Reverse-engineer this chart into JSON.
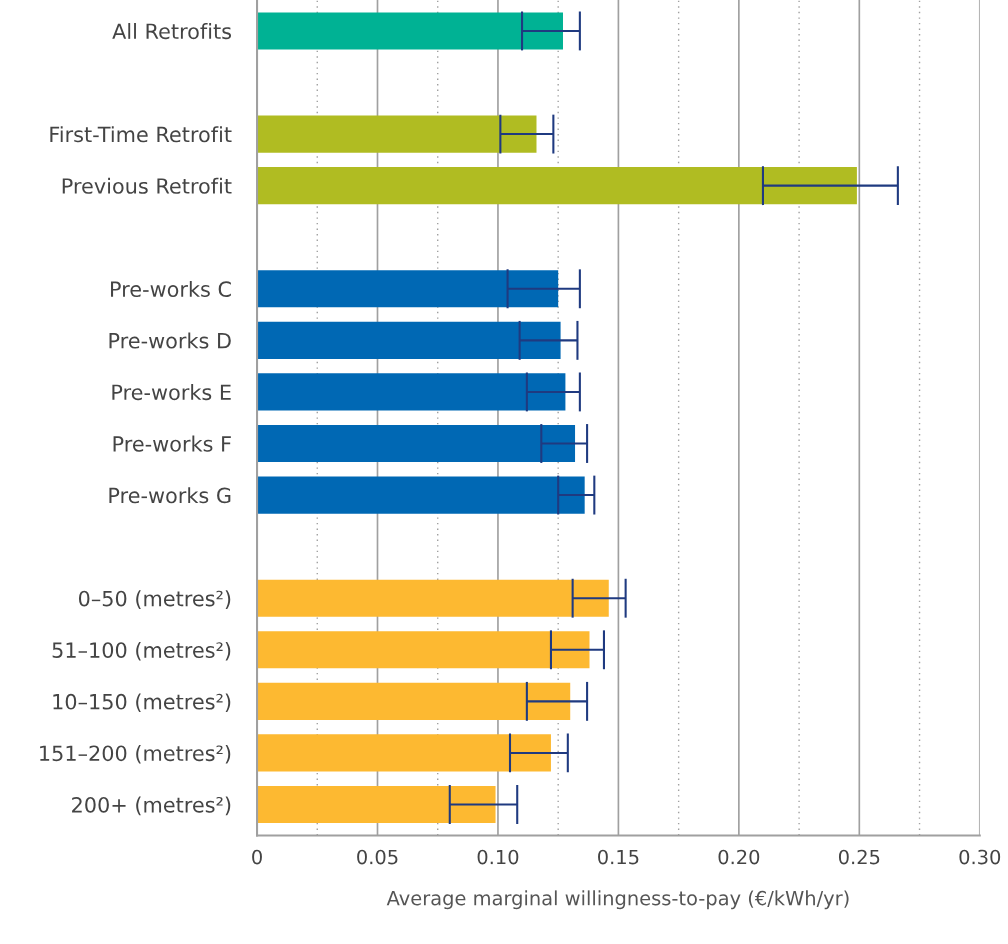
{
  "chart_data": {
    "type": "bar",
    "orientation": "horizontal",
    "xlabel": "Average marginal willingness-to-pay (€/kWh/yr)",
    "categories": [
      "All Retrofits",
      null,
      "First-Time Retrofit",
      "Previous Retrofit",
      null,
      "Pre-works C",
      "Pre-works D",
      "Pre-works E",
      "Pre-works F",
      "Pre-works G",
      null,
      "0–50 (metres²)",
      "51–100 (metres²)",
      "10–150 (metres²)",
      "151–200 (metres²)",
      "200+ (metres²)"
    ],
    "values": [
      0.127,
      null,
      0.116,
      0.249,
      null,
      0.125,
      0.126,
      0.128,
      0.132,
      0.136,
      null,
      0.146,
      0.138,
      0.13,
      0.122,
      0.099
    ],
    "colors": [
      "#00b294",
      null,
      "#b0bc22",
      "#b0bc22",
      null,
      "#0068b4",
      "#0068b4",
      "#0068b4",
      "#0068b4",
      "#0068b4",
      null,
      "#fdb931",
      "#fdb931",
      "#fdb931",
      "#fdb931",
      "#fdb931"
    ],
    "errors": [
      [
        0.11,
        0.134
      ],
      null,
      [
        0.101,
        0.123
      ],
      [
        0.21,
        0.266
      ],
      null,
      [
        0.104,
        0.134
      ],
      [
        0.109,
        0.133
      ],
      [
        0.112,
        0.134
      ],
      [
        0.118,
        0.137
      ],
      [
        0.125,
        0.14
      ],
      null,
      [
        0.131,
        0.153
      ],
      [
        0.122,
        0.144
      ],
      [
        0.112,
        0.137
      ],
      [
        0.105,
        0.129
      ],
      [
        0.08,
        0.108
      ]
    ],
    "xlim": [
      0,
      0.3
    ],
    "xticks": [
      {
        "value": 0,
        "label": "0"
      },
      {
        "value": 0.025,
        "label": null
      },
      {
        "value": 0.05,
        "label": "0.05"
      },
      {
        "value": 0.075,
        "label": null
      },
      {
        "value": 0.1,
        "label": "0.10"
      },
      {
        "value": 0.125,
        "label": null
      },
      {
        "value": 0.15,
        "label": "0.15"
      },
      {
        "value": 0.175,
        "label": null
      },
      {
        "value": 0.2,
        "label": "0.20"
      },
      {
        "value": 0.225,
        "label": null
      },
      {
        "value": 0.25,
        "label": "0.25"
      },
      {
        "value": 0.275,
        "label": null
      },
      {
        "value": 0.3,
        "label": "0.30"
      }
    ],
    "grid": "x"
  }
}
